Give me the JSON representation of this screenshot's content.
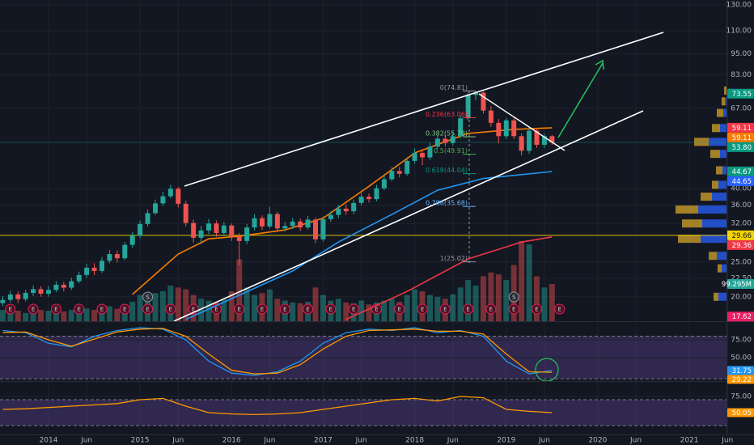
{
  "chart_data": {
    "type": "candlestick",
    "x": [
      -6,
      -5,
      -4,
      -3,
      -2,
      -1,
      0,
      1,
      2,
      3,
      4,
      5,
      6,
      7,
      8,
      9,
      10,
      11,
      12,
      13,
      14,
      15,
      16,
      17,
      18,
      19,
      20,
      21,
      22,
      23,
      24,
      25,
      26,
      27,
      28,
      29,
      30,
      31,
      32,
      33,
      34,
      35,
      36,
      37,
      38,
      39,
      40,
      41,
      42,
      43,
      44,
      45,
      46,
      47,
      48,
      49,
      50,
      51,
      52,
      53,
      54,
      55,
      56,
      57,
      58,
      59,
      60,
      61,
      62,
      63,
      64,
      65,
      66
    ],
    "open": [
      19.2,
      19.6,
      20.3,
      19.7,
      20.5,
      21.0,
      20.4,
      20.9,
      21.6,
      21.2,
      22.1,
      23.0,
      24.1,
      23.6,
      25.2,
      26.3,
      25.6,
      27.9,
      29.6,
      31.9,
      34.2,
      36.4,
      38.1,
      40.0,
      36.3,
      32.1,
      29.2,
      30.6,
      32.0,
      30.1,
      31.6,
      29.4,
      28.6,
      31.2,
      33.1,
      31.4,
      34.0,
      31.0,
      31.5,
      32.4,
      31.2,
      32.8,
      28.9,
      32.9,
      33.8,
      35.2,
      34.6,
      36.5,
      38.0,
      37.4,
      40.1,
      42.5,
      44.8,
      44.0,
      47.8,
      50.3,
      48.9,
      52.4,
      55.1,
      53.6,
      56.0,
      62.8,
      72.9,
      74.0,
      66.0,
      61.0,
      56.0,
      62.0,
      56.0,
      51.0,
      58.0,
      53.0,
      56.0
    ],
    "high": [
      20.1,
      20.8,
      20.7,
      20.9,
      21.5,
      21.4,
      21.4,
      22.1,
      22.0,
      22.6,
      23.5,
      24.7,
      24.8,
      25.8,
      27.0,
      26.9,
      28.4,
      30.3,
      32.6,
      35.0,
      37.3,
      39.2,
      41.0,
      40.5,
      37.0,
      32.8,
      31.5,
      32.9,
      32.6,
      32.3,
      32.0,
      30.1,
      31.9,
      34.0,
      33.7,
      35.6,
      34.5,
      32.3,
      33.2,
      33.0,
      33.6,
      33.2,
      33.5,
      34.6,
      36.0,
      36.2,
      37.3,
      38.9,
      38.8,
      41.0,
      43.5,
      45.9,
      46.0,
      48.9,
      51.8,
      51.5,
      53.6,
      56.5,
      56.3,
      57.5,
      64.0,
      73.8,
      74.8,
      74.5,
      68.0,
      62.5,
      63.0,
      63.0,
      57.0,
      59.0,
      59.0,
      57.0,
      56.5
    ],
    "low": [
      18.8,
      19.3,
      19.2,
      19.4,
      20.1,
      20.0,
      20.0,
      20.6,
      20.7,
      20.9,
      21.8,
      22.6,
      23.0,
      23.3,
      24.8,
      24.9,
      25.3,
      27.4,
      29.1,
      31.4,
      33.8,
      35.8,
      37.6,
      35.5,
      31.4,
      28.3,
      28.0,
      29.9,
      29.4,
      29.5,
      28.6,
      24.5,
      28.0,
      30.6,
      30.7,
      31.0,
      30.3,
      30.4,
      30.9,
      30.5,
      30.8,
      28.2,
      28.5,
      32.3,
      33.1,
      33.8,
      34.0,
      35.9,
      36.6,
      36.9,
      39.6,
      42.0,
      43.0,
      43.5,
      47.0,
      46.5,
      48.2,
      51.6,
      52.4,
      52.8,
      55.3,
      62.0,
      70.5,
      64.8,
      59.5,
      53.5,
      55.0,
      55.0,
      49.5,
      50.0,
      52.0,
      52.0,
      53.0
    ],
    "close": [
      19.6,
      20.3,
      19.7,
      20.5,
      21.0,
      20.4,
      20.9,
      21.6,
      21.2,
      22.1,
      23.0,
      24.1,
      23.6,
      25.2,
      26.3,
      25.6,
      27.9,
      29.6,
      31.9,
      34.2,
      36.4,
      38.1,
      40.0,
      36.3,
      32.1,
      29.2,
      30.6,
      32.0,
      30.1,
      31.6,
      29.4,
      28.6,
      31.2,
      33.1,
      31.4,
      34.0,
      31.0,
      31.5,
      32.4,
      31.2,
      32.8,
      28.9,
      32.9,
      33.8,
      35.2,
      34.6,
      36.5,
      38.0,
      37.4,
      40.1,
      42.5,
      44.8,
      44.0,
      47.8,
      50.3,
      48.9,
      52.4,
      55.1,
      53.6,
      56.0,
      62.8,
      72.9,
      74.0,
      66.0,
      61.0,
      56.0,
      62.0,
      56.0,
      51.0,
      58.0,
      53.0,
      56.0,
      53.8
    ],
    "volume": [
      30,
      25,
      28,
      22,
      35,
      30,
      28,
      32,
      26,
      30,
      38,
      34,
      30,
      36,
      40,
      33,
      45,
      52,
      70,
      60,
      75,
      80,
      95,
      90,
      85,
      70,
      60,
      55,
      50,
      58,
      80,
      165,
      90,
      70,
      75,
      85,
      60,
      55,
      50,
      48,
      52,
      90,
      70,
      55,
      60,
      50,
      48,
      55,
      45,
      50,
      55,
      60,
      52,
      70,
      85,
      80,
      70,
      65,
      60,
      72,
      90,
      110,
      95,
      120,
      130,
      125,
      110,
      150,
      214,
      205,
      120,
      90,
      99.295
    ],
    "xlim": [
      -6.36,
      88.87
    ],
    "ylim": [
      17.1,
      134.1
    ],
    "log_scale": true,
    "grid": true,
    "up_color": "#26a69a",
    "down_color": "#ef5350",
    "volume_lim": [
      0,
      857
    ],
    "volume_badge": {
      "value": 99.295,
      "label": "99.295M",
      "color": "#26a69a"
    },
    "xticks": [
      {
        "value": 0,
        "label": "2014"
      },
      {
        "value": 5,
        "label": "Jun"
      },
      {
        "value": 12,
        "label": "2015"
      },
      {
        "value": 17,
        "label": "Jun"
      },
      {
        "value": 24,
        "label": "2016"
      },
      {
        "value": 29,
        "label": "Jun"
      },
      {
        "value": 36,
        "label": "2017"
      },
      {
        "value": 41,
        "label": "Jun"
      },
      {
        "value": 48,
        "label": "2018"
      },
      {
        "value": 53,
        "label": "Jun"
      },
      {
        "value": 60,
        "label": "2019"
      },
      {
        "value": 65,
        "label": "Jun"
      },
      {
        "value": 72,
        "label": "2020"
      },
      {
        "value": 77,
        "label": "Jun"
      },
      {
        "value": 84,
        "label": "2021"
      },
      {
        "value": 89,
        "label": "Jun"
      }
    ],
    "yticks": [
      {
        "value": 130,
        "label": "130.00"
      },
      {
        "value": 110,
        "label": "110.00"
      },
      {
        "value": 95,
        "label": "95.00"
      },
      {
        "value": 83,
        "label": "83.00"
      },
      {
        "value": 67,
        "label": "67.00"
      },
      {
        "value": 40,
        "label": "40.00"
      },
      {
        "value": 36,
        "label": "36.00"
      },
      {
        "value": 32,
        "label": "32.00"
      },
      {
        "value": 25,
        "label": "25.00"
      },
      {
        "value": 22.5,
        "label": "22.50"
      },
      {
        "value": 20,
        "label": "20.00"
      }
    ],
    "lines": [
      {
        "color": "#f57c00",
        "x": [
          11,
          17,
          21,
          25,
          31,
          36,
          42,
          48,
          55,
          61,
          66
        ],
        "values": [
          20.3,
          26.3,
          29.0,
          29.5,
          30.7,
          33.1,
          40.6,
          50.3,
          57.0,
          58.5,
          59.11
        ]
      },
      {
        "color": "#2196f3",
        "x": [
          18,
          25,
          32,
          38,
          45,
          51,
          57,
          66
        ],
        "values": [
          17.3,
          20.2,
          23.6,
          28.4,
          33.9,
          39.6,
          42.7,
          44.65
        ]
      },
      {
        "color": "#f23645",
        "x": [
          39,
          47,
          55,
          62,
          66
        ],
        "values": [
          17.3,
          20.7,
          25.5,
          28.4,
          29.36
        ]
      }
    ],
    "fib_levels": [
      {
        "value": 74.81,
        "label": "0(74.81)",
        "color": "#9598a1"
      },
      {
        "value": 63.06,
        "label": "0.236(63.06)",
        "color": "#f23645"
      },
      {
        "value": 55.79,
        "label": "0.382(55.79)",
        "color": "#81c784"
      },
      {
        "value": 49.91,
        "label": "0.5(49.91)",
        "color": "#4caf50"
      },
      {
        "value": 44.04,
        "label": "0.618(44.04)",
        "color": "#089981"
      },
      {
        "value": 35.68,
        "label": "0.786(35.68)",
        "color": "#64b5f6"
      },
      {
        "value": 25.02,
        "label": "1(25.02)",
        "color": "#9598a1"
      }
    ],
    "price_badges": [
      {
        "value": 73.55,
        "label": "73.55",
        "color": "#089981"
      },
      {
        "value": 59.11,
        "label": "59.11",
        "color": "#f23645"
      },
      {
        "value": 59.11,
        "label": "59.11",
        "color": "#f57c00"
      },
      {
        "value": 53.8,
        "label": "53.80",
        "color": "#089981",
        "line": true
      },
      {
        "value": 44.67,
        "label": "44.67",
        "color": "#089981"
      },
      {
        "value": 44.65,
        "label": "44.65",
        "color": "#2962ff"
      },
      {
        "value": 29.36,
        "label": "29.36",
        "color": "#f23645"
      },
      {
        "value": 29.66,
        "label": "29.66",
        "color": "#f5d300",
        "line": true
      },
      {
        "value": 17.62,
        "label": "17.62",
        "color": "#e91e63"
      }
    ],
    "events": [
      {
        "x": -5,
        "label": "E"
      },
      {
        "x": -2,
        "label": "E"
      },
      {
        "x": 1,
        "label": "E"
      },
      {
        "x": 4,
        "label": "E"
      },
      {
        "x": 7,
        "label": "E"
      },
      {
        "x": 10,
        "label": "E"
      },
      {
        "x": 13,
        "label": "E"
      },
      {
        "x": 16,
        "label": "E"
      },
      {
        "x": 19,
        "label": "E"
      },
      {
        "x": 22,
        "label": "E"
      },
      {
        "x": 25,
        "label": "E"
      },
      {
        "x": 28,
        "label": "E"
      },
      {
        "x": 31,
        "label": "E"
      },
      {
        "x": 34,
        "label": "E"
      },
      {
        "x": 37,
        "label": "E"
      },
      {
        "x": 40,
        "label": "E"
      },
      {
        "x": 43,
        "label": "E"
      },
      {
        "x": 46,
        "label": "E"
      },
      {
        "x": 49,
        "label": "E"
      },
      {
        "x": 52,
        "label": "E"
      },
      {
        "x": 55,
        "label": "E"
      },
      {
        "x": 58,
        "label": "E"
      },
      {
        "x": 61,
        "label": "E"
      },
      {
        "x": 64,
        "label": "E"
      },
      {
        "x": 67,
        "label": "E"
      },
      {
        "x": 13,
        "label": "S"
      },
      {
        "x": 61,
        "label": "S"
      }
    ],
    "volume_profile": {
      "prices": [
        75,
        70,
        65,
        59,
        54,
        50,
        45,
        41,
        38,
        35,
        32,
        29,
        26,
        24,
        20
      ],
      "up": [
        0,
        2,
        4,
        8,
        22,
        8,
        5,
        10,
        18,
        35,
        30,
        32,
        12,
        6,
        10
      ],
      "down": [
        3,
        4,
        8,
        10,
        18,
        12,
        8,
        8,
        14,
        28,
        25,
        28,
        10,
        5,
        6
      ],
      "up_color": "#2962ff",
      "down_color": "#d6a52a"
    },
    "stochastic": {
      "ylim": [
        18,
        100
      ],
      "yticks": [
        {
          "value": 75,
          "label": "75.00"
        },
        {
          "value": 50,
          "label": "50.00"
        }
      ],
      "band": [
        20,
        80
      ],
      "series": [
        {
          "color": "#2196f3",
          "x": [
            -6,
            -3,
            0,
            3,
            6,
            9,
            12,
            15,
            18,
            21,
            24,
            27,
            30,
            33,
            36,
            39,
            42,
            45,
            48,
            51,
            54,
            57,
            60,
            63,
            66
          ],
          "values": [
            88,
            85,
            70,
            65,
            80,
            88,
            92,
            90,
            75,
            45,
            28,
            25,
            30,
            45,
            70,
            85,
            90,
            88,
            92,
            85,
            88,
            80,
            45,
            27,
            31.75
          ]
        },
        {
          "color": "#ff9800",
          "x": [
            -6,
            -3,
            0,
            3,
            6,
            9,
            12,
            15,
            18,
            21,
            24,
            27,
            30,
            33,
            36,
            39,
            42,
            45,
            48,
            51,
            54,
            57,
            60,
            63,
            66
          ],
          "values": [
            85,
            86,
            75,
            66,
            76,
            86,
            90,
            91,
            80,
            55,
            32,
            27,
            28,
            40,
            62,
            80,
            88,
            89,
            90,
            87,
            87,
            83,
            55,
            30,
            29.22
          ]
        }
      ]
    },
    "rsi": {
      "ylim": [
        17.5,
        97.5
      ],
      "yticks": [
        {
          "value": 75,
          "label": "75.00"
        }
      ],
      "band": [
        30,
        70
      ],
      "series": [
        {
          "color": "#ff9800",
          "x": [
            -6,
            -3,
            0,
            3,
            6,
            9,
            12,
            15,
            18,
            21,
            24,
            27,
            30,
            33,
            36,
            39,
            42,
            45,
            48,
            51,
            54,
            57,
            60,
            63,
            66
          ],
          "values": [
            55,
            56,
            58,
            60,
            62,
            64,
            70,
            72,
            60,
            50,
            48,
            47,
            48,
            50,
            55,
            60,
            65,
            70,
            72,
            68,
            75,
            73,
            55,
            52,
            50.05
          ]
        }
      ]
    }
  }
}
